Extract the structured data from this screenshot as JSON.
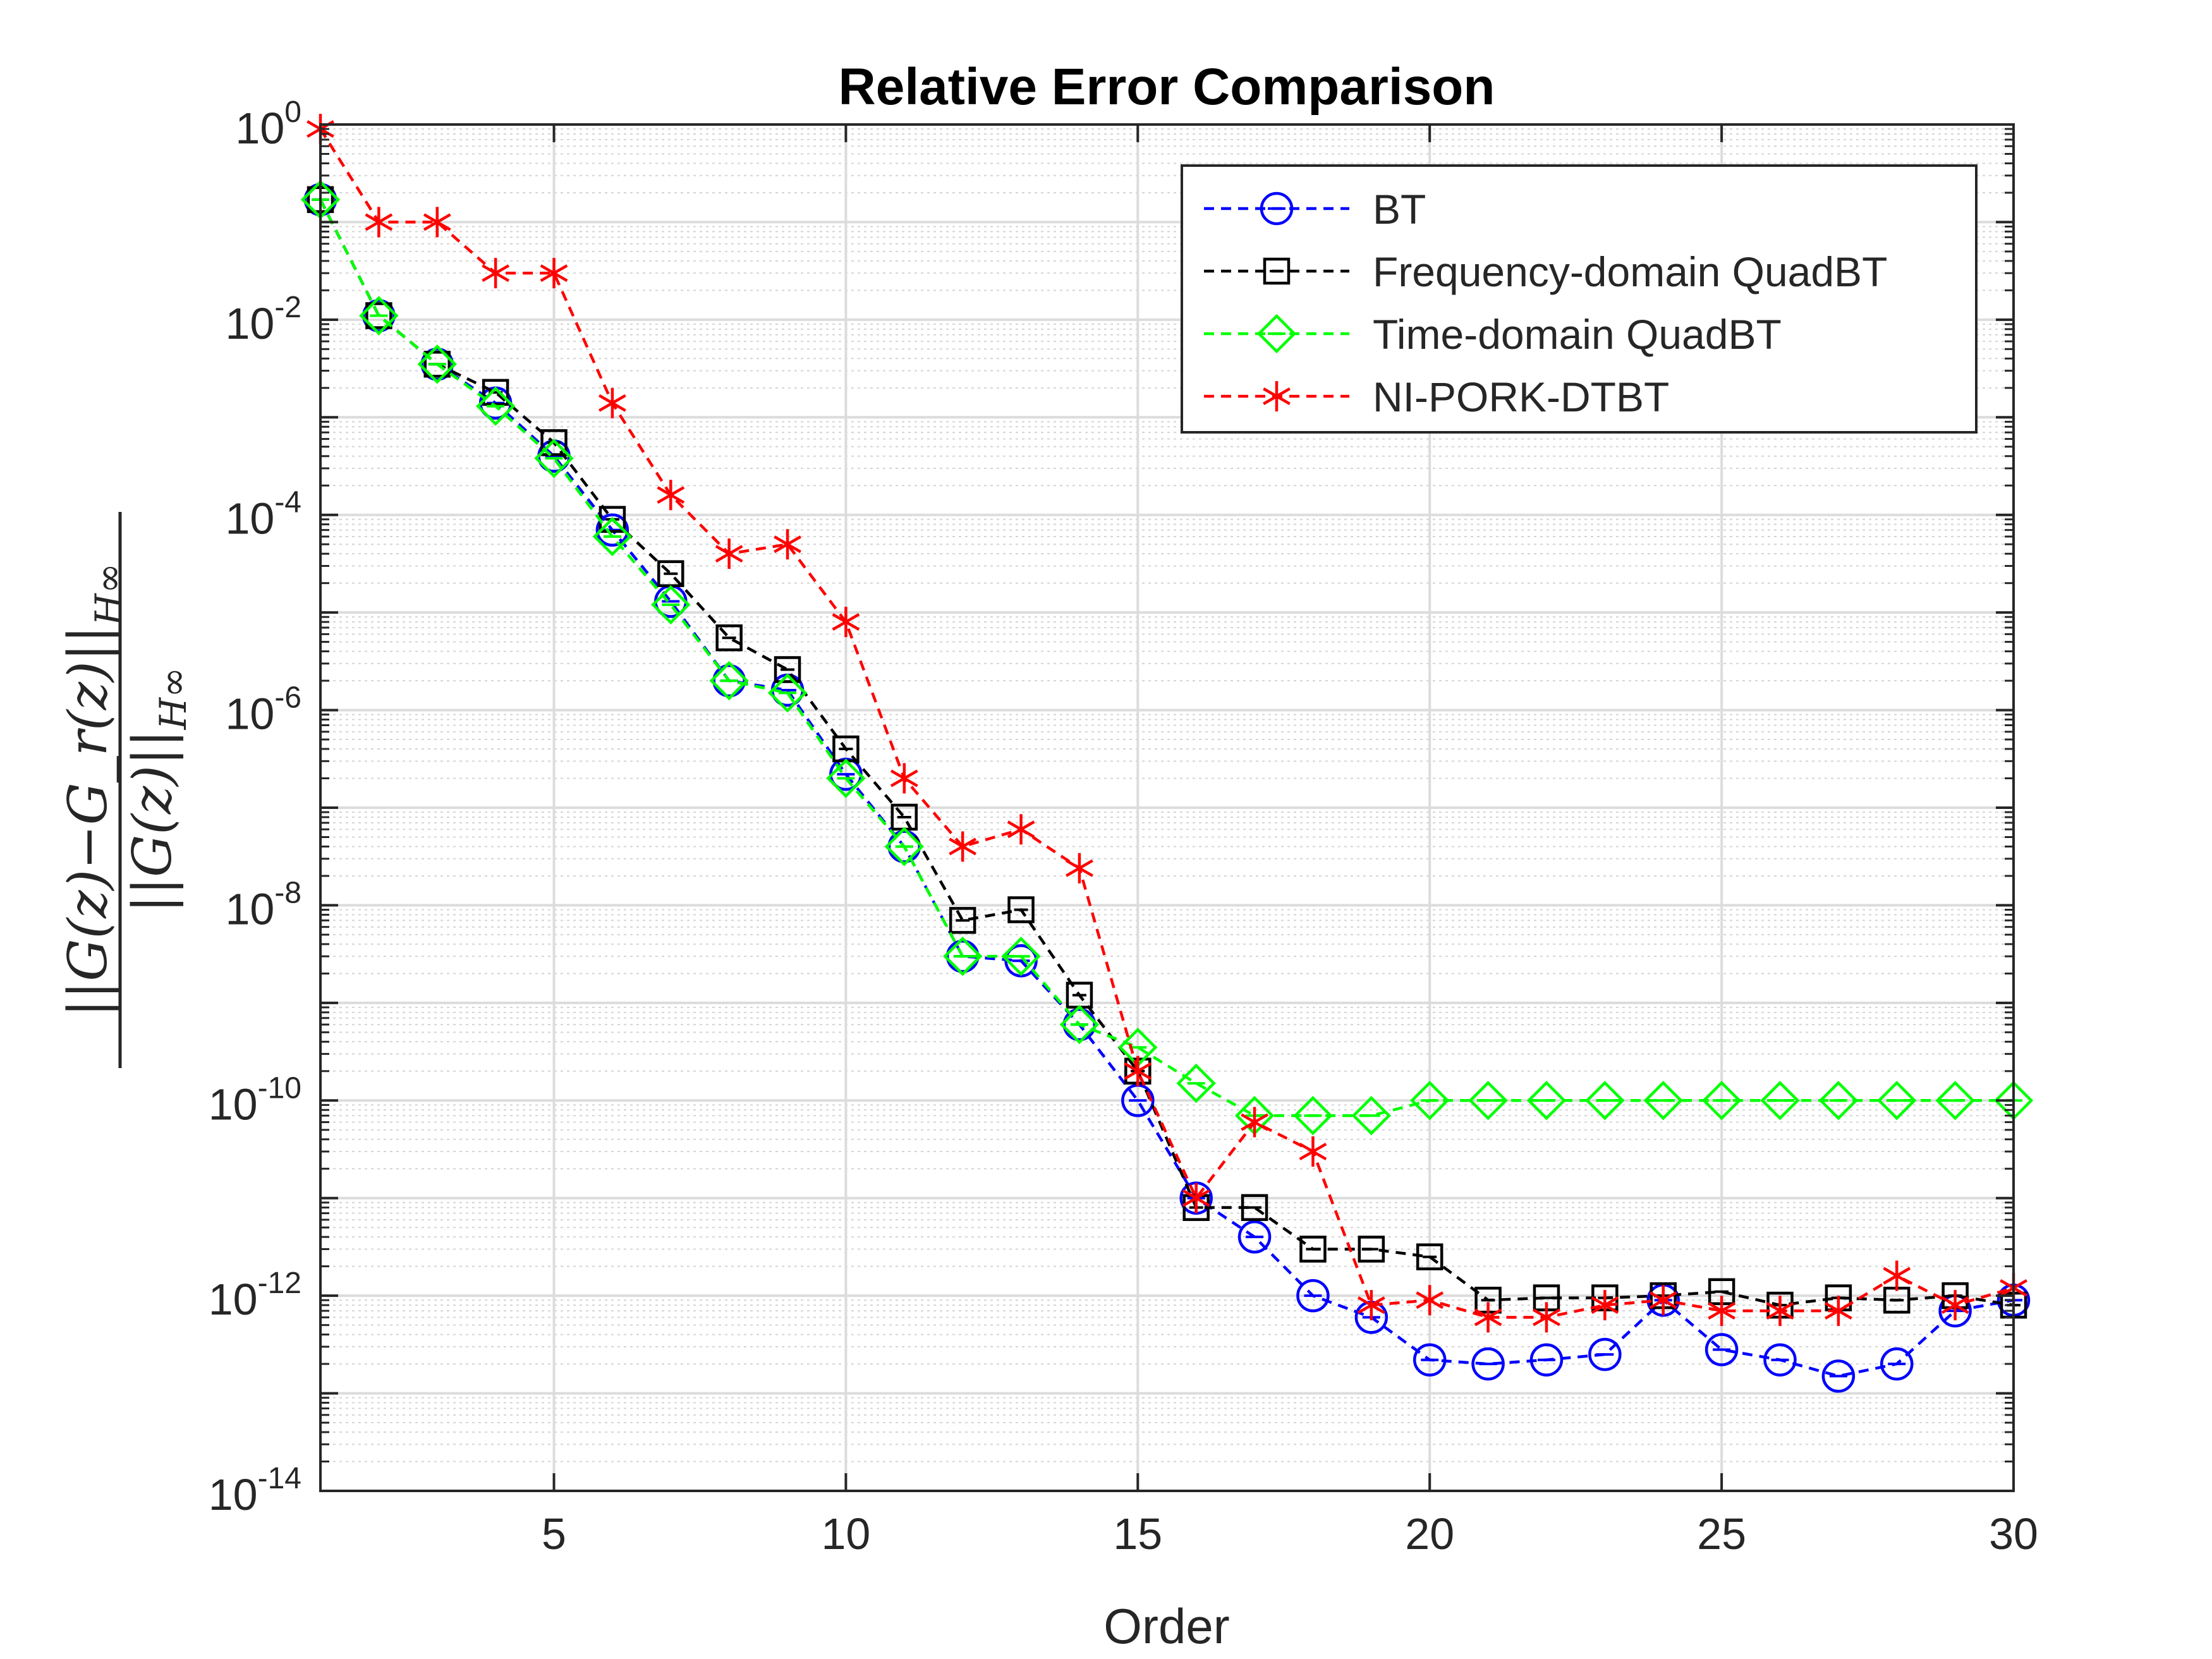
{
  "chart_data": {
    "type": "line",
    "title": "Relative Error Comparison",
    "xlabel": "Order",
    "ylabel": "||G(z) − G_r(z)||_H∞ / ||G(z)||_H∞",
    "ylabel_numerator": "||G(z)−G_r(z)||",
    "ylabel_denominator": "||G(z)||",
    "ylabel_subscript": "H∞",
    "xlim": [
      1,
      30
    ],
    "ylim": [
      1e-14,
      1
    ],
    "yscale": "log",
    "grid": true,
    "legend_location": "top-right",
    "x_ticks": [
      5,
      10,
      15,
      20,
      25,
      30
    ],
    "y_ticks": [
      {
        "exp": 0,
        "label": "10",
        "sup": "0"
      },
      {
        "exp": -2,
        "label": "10",
        "sup": "-2"
      },
      {
        "exp": -4,
        "label": "10",
        "sup": "-4"
      },
      {
        "exp": -6,
        "label": "10",
        "sup": "-6"
      },
      {
        "exp": -8,
        "label": "10",
        "sup": "-8"
      },
      {
        "exp": -10,
        "label": "10",
        "sup": "-10"
      },
      {
        "exp": -12,
        "label": "10",
        "sup": "-12"
      },
      {
        "exp": -14,
        "label": "10",
        "sup": "-14"
      }
    ],
    "x": [
      1,
      2,
      3,
      4,
      5,
      6,
      7,
      8,
      9,
      10,
      11,
      12,
      13,
      14,
      15,
      16,
      17,
      18,
      19,
      20,
      21,
      22,
      23,
      24,
      25,
      26,
      27,
      28,
      29,
      30
    ],
    "series": [
      {
        "name": "BT",
        "color": "#0000ff",
        "marker": "circle",
        "values": [
          0.17,
          0.011,
          0.0035,
          0.0014,
          0.0004,
          7e-05,
          1.3e-05,
          2e-06,
          1.6e-06,
          2.2e-07,
          4e-08,
          3e-09,
          2.7e-09,
          6e-10,
          1e-10,
          1e-11,
          4e-12,
          1e-12,
          6e-13,
          2.2e-13,
          2e-13,
          2.2e-13,
          2.5e-13,
          9e-13,
          2.8e-13,
          2.2e-13,
          1.5e-13,
          2e-13,
          7e-13,
          9e-13
        ]
      },
      {
        "name": "Frequency-domain QuadBT",
        "color": "#000000",
        "marker": "square",
        "values": [
          0.17,
          0.011,
          0.0035,
          0.0018,
          0.00055,
          9e-05,
          2.5e-05,
          5.5e-06,
          2.6e-06,
          4e-07,
          8e-08,
          7e-09,
          9e-09,
          1.2e-09,
          2e-10,
          8e-12,
          8e-12,
          3e-12,
          3e-12,
          2.5e-12,
          9e-13,
          9.5e-13,
          9.5e-13,
          1e-12,
          1.1e-12,
          8e-13,
          9.5e-13,
          9e-13,
          1e-12,
          8e-13
        ]
      },
      {
        "name": "Time-domain QuadBT",
        "color": "#00ff00",
        "marker": "diamond",
        "values": [
          0.17,
          0.011,
          0.0035,
          0.0013,
          0.00038,
          6e-05,
          1.2e-05,
          2e-06,
          1.5e-06,
          2e-07,
          4e-08,
          3e-09,
          3e-09,
          6e-10,
          3.5e-10,
          1.5e-10,
          7e-11,
          7e-11,
          7e-11,
          1e-10,
          1e-10,
          1e-10,
          1e-10,
          1e-10,
          1e-10,
          1e-10,
          1e-10,
          1e-10,
          1e-10,
          1e-10
        ]
      },
      {
        "name": "NI-PORK-DTBT",
        "color": "#ff0000",
        "marker": "asterisk",
        "values": [
          0.9,
          0.1,
          0.1,
          0.03,
          0.03,
          0.0014,
          0.00016,
          4e-05,
          5e-05,
          8e-06,
          2e-07,
          4e-08,
          6e-08,
          2.4e-08,
          2e-10,
          1e-11,
          6e-11,
          3e-11,
          8e-13,
          9e-13,
          6e-13,
          6e-13,
          8e-13,
          9e-13,
          7e-13,
          7e-13,
          7e-13,
          1.6e-12,
          8e-13,
          1.2e-12
        ]
      }
    ]
  }
}
